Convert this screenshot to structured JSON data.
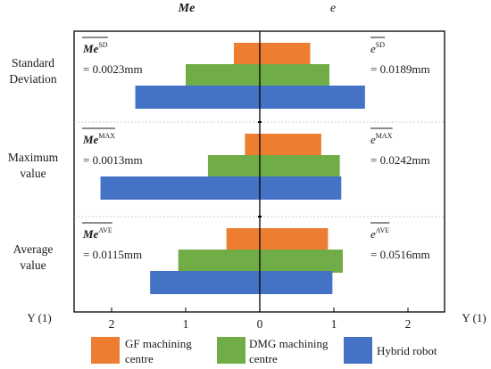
{
  "chart_data": {
    "type": "bar",
    "orientation": "horizontal-butterfly",
    "column_headers": {
      "left": "Me",
      "right": "e"
    },
    "y_axis_label": "Y (1)",
    "xlim": [
      -2.6,
      2.6
    ],
    "x_ticks": [
      -2,
      -1,
      0,
      1,
      2
    ],
    "x_tick_labels": [
      "2",
      "1",
      "0",
      "1",
      "2"
    ],
    "grid": false,
    "legend_position": "bottom",
    "categories": [
      [
        "Standard",
        "Deviation"
      ],
      [
        "Maximum",
        "value"
      ],
      [
        "Average",
        "value"
      ]
    ],
    "series": [
      {
        "name": "GF machining centre",
        "color": "#ED7D31",
        "left": [
          0.35,
          0.2,
          0.45
        ],
        "right": [
          0.68,
          0.83,
          0.92
        ]
      },
      {
        "name": "DMG machining centre",
        "color": "#70AD47",
        "left": [
          1.0,
          0.7,
          1.1
        ],
        "right": [
          0.94,
          1.08,
          1.12
        ]
      },
      {
        "name": "Hybrid robot",
        "color": "#4472C4",
        "left": [
          1.68,
          2.15,
          1.48
        ],
        "right": [
          1.42,
          1.1,
          0.98
        ]
      }
    ],
    "annotations": [
      {
        "left_symbol": "Me",
        "left_sup": "SD",
        "left_value": "= 0.0023mm",
        "right_symbol": "e",
        "right_sup": "SD",
        "right_value": "= 0.0189mm"
      },
      {
        "left_symbol": "Me",
        "left_sup": "MAX",
        "left_value": "= 0.0013mm",
        "right_symbol": "e",
        "right_sup": "MAX",
        "right_value": "= 0.0242mm"
      },
      {
        "left_symbol": "Me",
        "left_sup": "AVE",
        "left_value": "= 0.0115mm",
        "right_symbol": "e",
        "right_sup": "AVE",
        "right_value": "= 0.0516mm"
      }
    ]
  },
  "legend": [
    {
      "label_lines": [
        "GF machining",
        "centre"
      ],
      "color": "#ED7D31"
    },
    {
      "label_lines": [
        "DMG machining",
        "centre"
      ],
      "color": "#70AD47"
    },
    {
      "label_lines": [
        "Hybrid robot"
      ],
      "color": "#4472C4"
    }
  ]
}
